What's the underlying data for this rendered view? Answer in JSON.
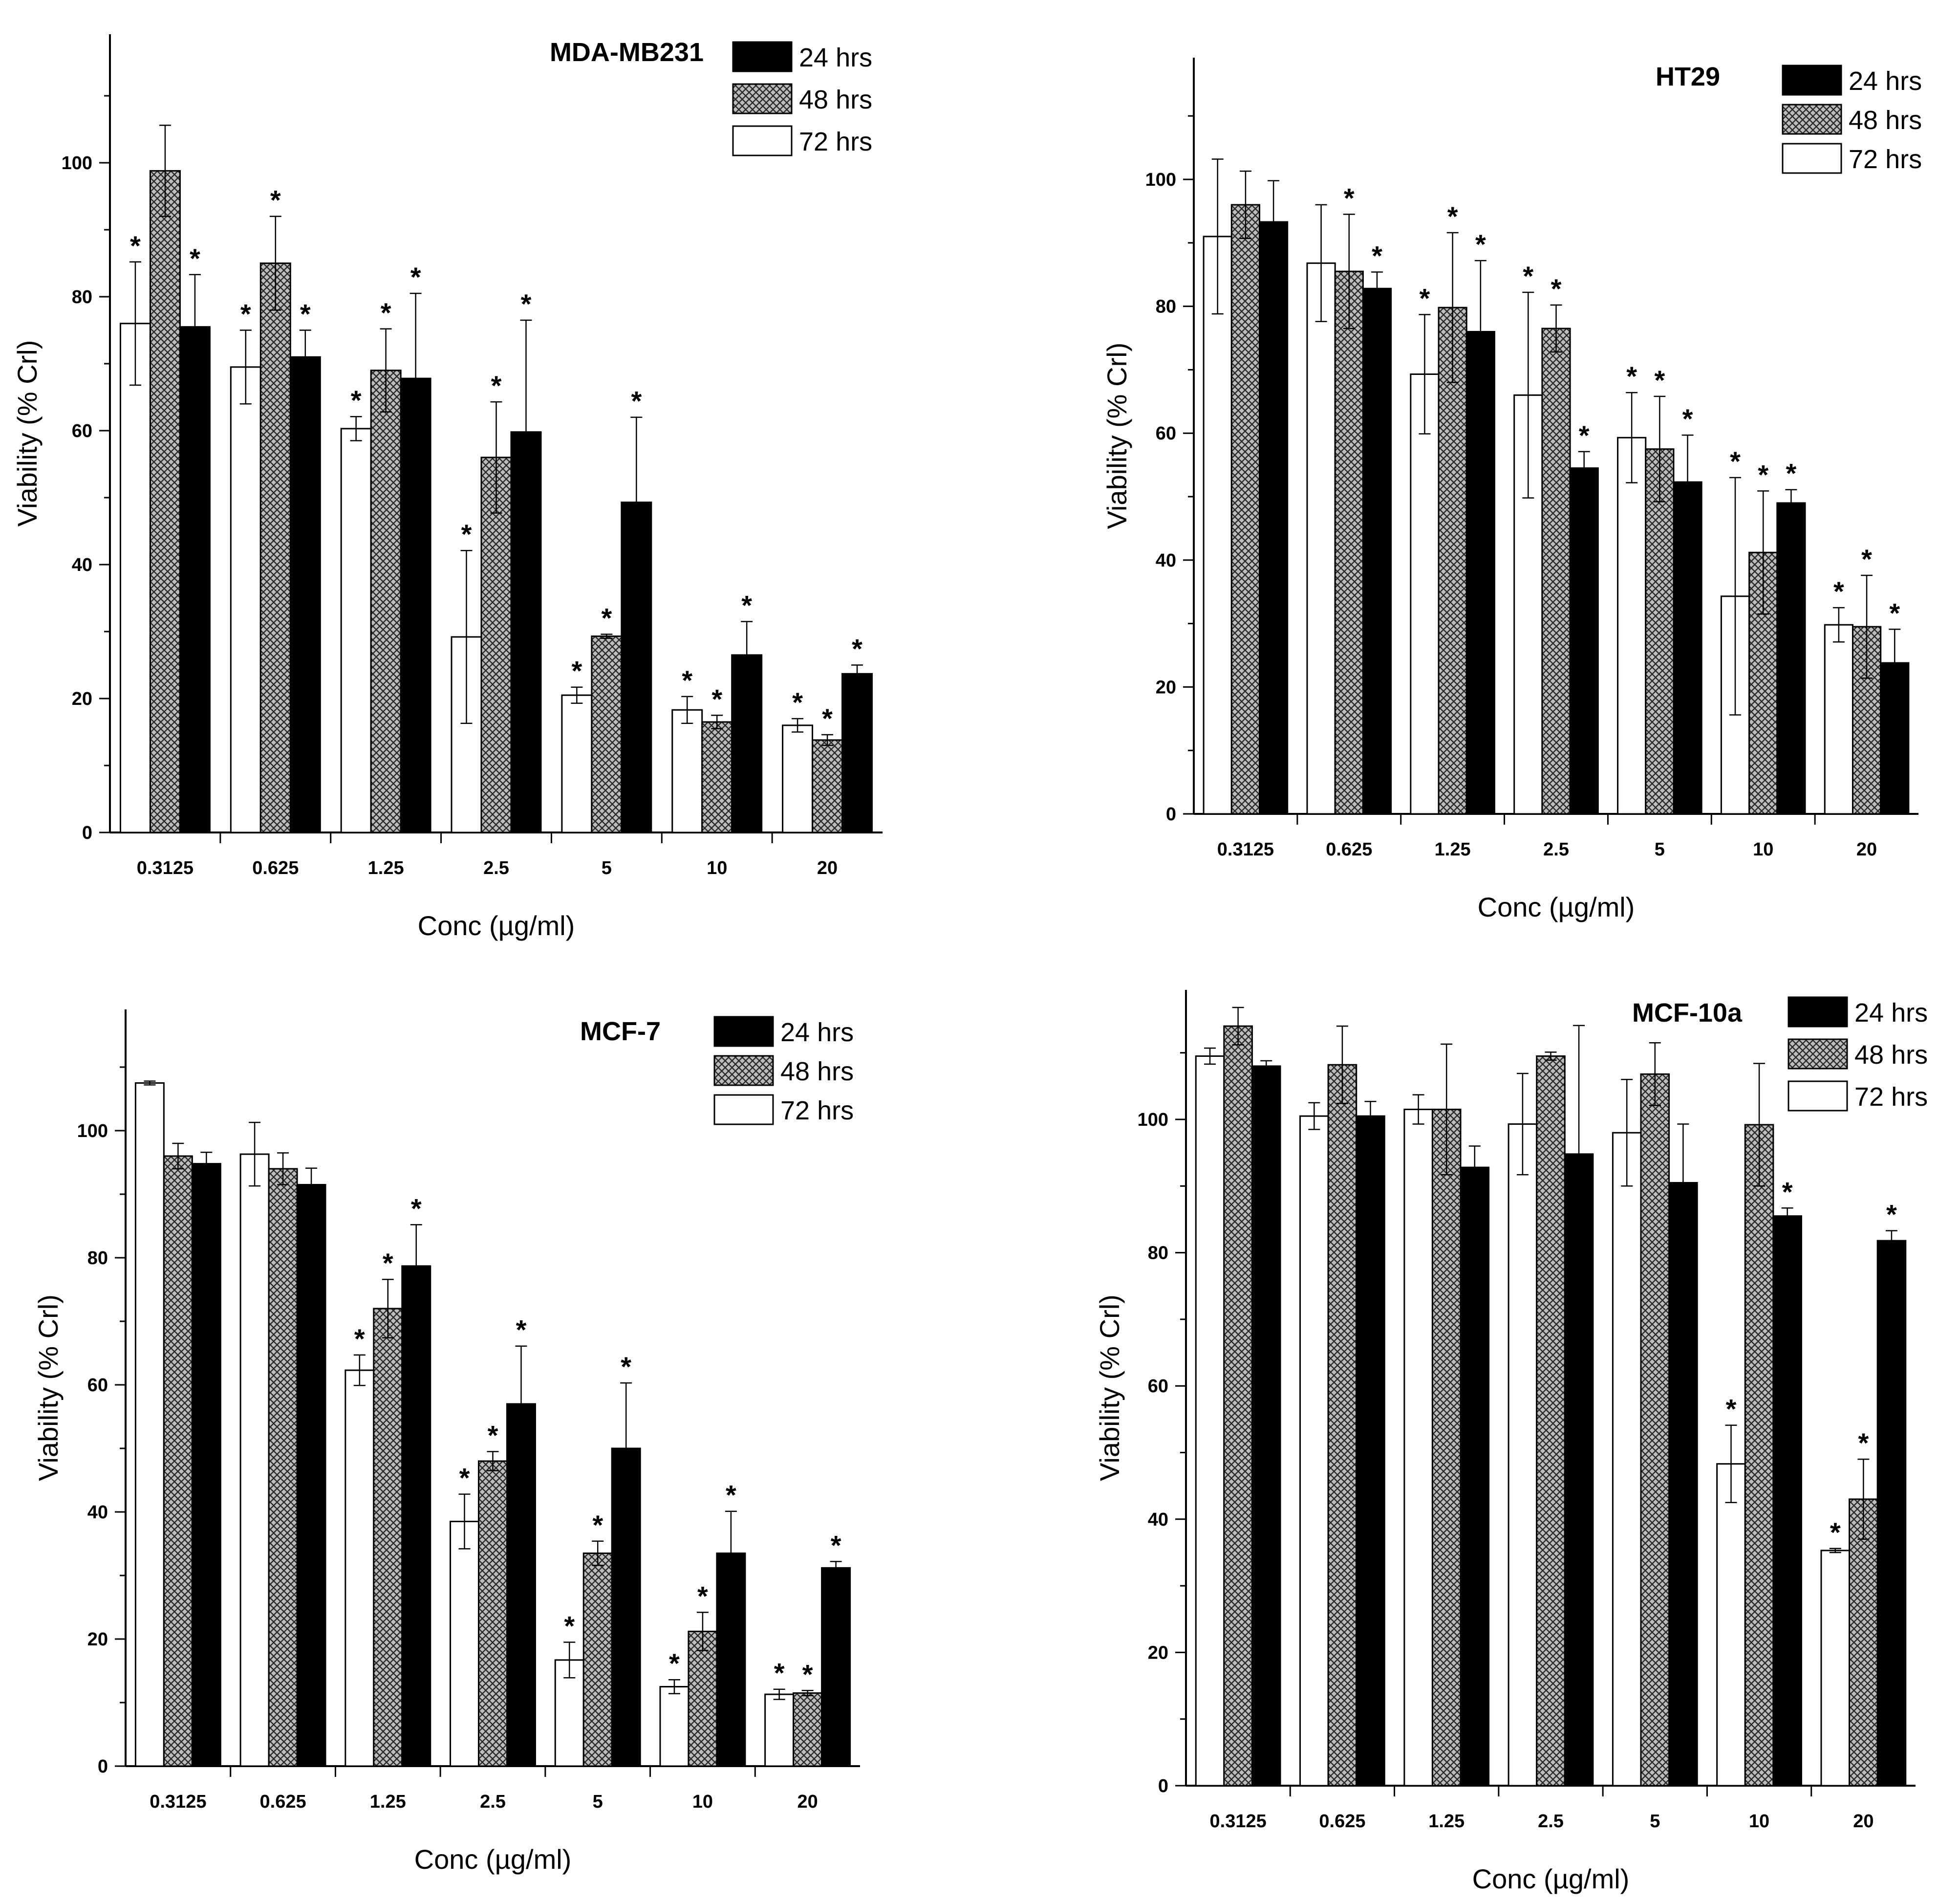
{
  "chart_data": [
    {
      "type": "bar",
      "title": "MDA-MB231",
      "xlabel": "Conc (µg/ml)",
      "ylabel": "Viability (% Crl)",
      "ylim": [
        0,
        120
      ],
      "yticks": [
        0,
        20,
        40,
        60,
        80,
        100
      ],
      "categories": [
        "0.3125",
        "0.625",
        "1.25",
        "2.5",
        "5",
        "10",
        "20"
      ],
      "series": [
        {
          "name": "72 hrs",
          "fill": "white",
          "values": [
            76,
            69.5,
            60.3,
            29.2,
            20.5,
            18.3,
            16
          ],
          "errors": [
            9.2,
            5.5,
            1.8,
            12.9,
            1.2,
            2,
            1
          ],
          "sig": [
            true,
            true,
            true,
            true,
            true,
            true,
            true
          ]
        },
        {
          "name": "48 hrs",
          "fill": "hatch",
          "values": [
            98.8,
            85,
            69,
            56,
            29.3,
            16.5,
            13.8
          ],
          "errors": [
            6.8,
            7,
            6.2,
            8.3,
            0.3,
            1,
            0.8
          ],
          "sig": [
            false,
            true,
            true,
            true,
            true,
            true,
            true
          ]
        },
        {
          "name": "24 hrs",
          "fill": "black",
          "values": [
            75.5,
            71,
            67.8,
            59.8,
            49.3,
            26.5,
            23.7
          ],
          "errors": [
            7.8,
            4,
            12.7,
            16.7,
            12.7,
            5,
            1.3
          ],
          "sig": [
            true,
            true,
            true,
            true,
            true,
            true,
            true
          ]
        }
      ],
      "legend_order": [
        "24 hrs",
        "48 hrs",
        "72 hrs"
      ],
      "significance_marker": "*"
    },
    {
      "type": "bar",
      "title": "HT29",
      "xlabel": "Conc (µg/ml)",
      "ylabel": "Viability (% Crl)",
      "ylim": [
        0,
        120
      ],
      "yticks": [
        0,
        20,
        40,
        60,
        80,
        100
      ],
      "categories": [
        "0.3125",
        "0.625",
        "1.25",
        "2.5",
        "5",
        "10",
        "20"
      ],
      "series": [
        {
          "name": "72 hrs",
          "fill": "white",
          "values": [
            91,
            86.8,
            69.3,
            66,
            59.3,
            34.3,
            29.8
          ],
          "errors": [
            12.2,
            9.2,
            9.4,
            16.2,
            7.1,
            18.7,
            2.7
          ],
          "sig": [
            false,
            false,
            true,
            true,
            true,
            true,
            true
          ]
        },
        {
          "name": "48 hrs",
          "fill": "hatch",
          "values": [
            96,
            85.5,
            79.8,
            76.5,
            57.5,
            41.2,
            29.5
          ],
          "errors": [
            5.3,
            9,
            11.8,
            3.7,
            8.3,
            9.7,
            8.1
          ],
          "sig": [
            false,
            true,
            true,
            true,
            true,
            true,
            true
          ]
        },
        {
          "name": "24 hrs",
          "fill": "black",
          "values": [
            93.3,
            82.8,
            76,
            54.5,
            52.3,
            49,
            23.8
          ],
          "errors": [
            6.5,
            2.6,
            11.2,
            2.6,
            7.4,
            2.1,
            5.3
          ],
          "sig": [
            false,
            true,
            true,
            true,
            true,
            true,
            true
          ]
        }
      ],
      "legend_order": [
        "24 hrs",
        "48 hrs",
        "72 hrs"
      ],
      "significance_marker": "*"
    },
    {
      "type": "bar",
      "title": "MCF-7",
      "xlabel": "Conc (µg/ml)",
      "ylabel": "Viability (% Crl)",
      "ylim": [
        0,
        120
      ],
      "yticks": [
        0,
        20,
        40,
        60,
        80,
        100
      ],
      "categories": [
        "0.3125",
        "0.625",
        "1.25",
        "2.5",
        "5",
        "10",
        "20"
      ],
      "series": [
        {
          "name": "72 hrs",
          "fill": "white",
          "values": [
            107.5,
            96.3,
            62.3,
            38.5,
            16.7,
            12.5,
            11.3
          ],
          "errors": [
            0.3,
            5,
            2.4,
            4.3,
            2.8,
            1.1,
            0.8
          ],
          "sig": [
            false,
            false,
            true,
            true,
            true,
            true,
            true
          ]
        },
        {
          "name": "48 hrs",
          "fill": "hatch",
          "values": [
            96,
            94,
            72,
            48,
            33.5,
            21.2,
            11.5
          ],
          "errors": [
            2,
            2.5,
            4.6,
            1.5,
            1.9,
            3,
            0.4
          ],
          "sig": [
            false,
            false,
            true,
            true,
            true,
            true,
            true
          ]
        },
        {
          "name": "24 hrs",
          "fill": "black",
          "values": [
            94.8,
            91.5,
            78.7,
            57,
            50,
            33.5,
            31.2
          ],
          "errors": [
            1.8,
            2.6,
            6.5,
            9.1,
            10.3,
            6.6,
            1
          ],
          "sig": [
            false,
            false,
            true,
            true,
            true,
            true,
            true
          ]
        }
      ],
      "legend_order": [
        "24 hrs",
        "48 hrs",
        "72 hrs"
      ],
      "significance_marker": "*"
    },
    {
      "type": "bar",
      "title": "MCF-10a",
      "xlabel": "Conc (µg/ml)",
      "ylabel": "Viability (% Crl)",
      "ylim": [
        0,
        120
      ],
      "yticks": [
        0,
        20,
        40,
        60,
        80,
        100
      ],
      "categories": [
        "0.3125",
        "0.625",
        "1.25",
        "2.5",
        "5",
        "10",
        "20"
      ],
      "series": [
        {
          "name": "72 hrs",
          "fill": "white",
          "values": [
            109.5,
            100.5,
            101.5,
            99.3,
            98,
            48.3,
            35.3
          ],
          "errors": [
            1.2,
            2,
            2.2,
            7.6,
            8,
            5.8,
            0.3
          ],
          "sig": [
            false,
            false,
            false,
            false,
            false,
            true,
            true
          ]
        },
        {
          "name": "48 hrs",
          "fill": "hatch",
          "values": [
            114,
            108.2,
            101.5,
            109.5,
            106.8,
            99.2,
            43
          ],
          "errors": [
            2.8,
            5.8,
            9.8,
            0.6,
            4.7,
            9.2,
            6
          ],
          "sig": [
            false,
            false,
            false,
            false,
            false,
            false,
            true
          ]
        },
        {
          "name": "24 hrs",
          "fill": "black",
          "values": [
            108,
            100.5,
            92.8,
            94.8,
            90.5,
            85.5,
            81.8
          ],
          "errors": [
            0.8,
            2.2,
            3.2,
            19.3,
            8.8,
            1.2,
            1.5
          ],
          "sig": [
            false,
            false,
            false,
            false,
            false,
            true,
            true
          ]
        }
      ],
      "legend_order": [
        "24 hrs",
        "48 hrs",
        "72 hrs"
      ],
      "significance_marker": "*"
    }
  ]
}
